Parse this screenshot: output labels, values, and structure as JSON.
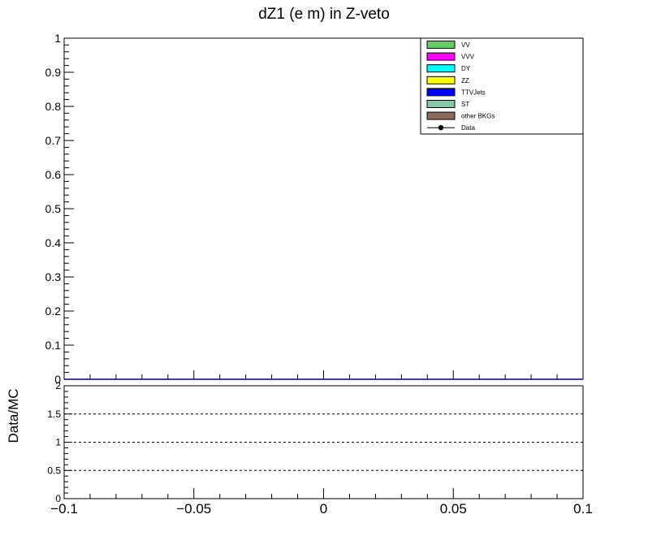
{
  "chart_data": [
    {
      "type": "bar",
      "title": "dZ1 (e m) in Z-veto",
      "xlabel": "",
      "ylabel": "",
      "xlim": [
        -0.1,
        0.1
      ],
      "ylim": [
        0,
        1
      ],
      "y_ticks": [
        "0",
        "0.1",
        "0.2",
        "0.3",
        "0.4",
        "0.5",
        "0.6",
        "0.7",
        "0.8",
        "0.9",
        "1"
      ],
      "legend_position": "top-right",
      "series": [
        {
          "name": "VV",
          "color": "#66cc66",
          "values": []
        },
        {
          "name": "VVV",
          "color": "#ff00ff",
          "values": []
        },
        {
          "name": "DY",
          "color": "#00ffff",
          "values": []
        },
        {
          "name": "ZZ",
          "color": "#ffff00",
          "values": []
        },
        {
          "name": "TTVJets",
          "color": "#0000ff",
          "values": []
        },
        {
          "name": "ST",
          "color": "#88c4a8",
          "values": []
        },
        {
          "name": "other BKGs",
          "color": "#8b6a5c",
          "values": []
        },
        {
          "name": "Data",
          "color": "#000000",
          "marker": "circle",
          "values": []
        }
      ],
      "grid": false
    },
    {
      "type": "line",
      "title": "",
      "ylabel": "Data/MC",
      "xlabel": "",
      "xlim": [
        -0.1,
        0.1
      ],
      "ylim": [
        0,
        2
      ],
      "x_ticks": [
        "−0.1",
        "−0.05",
        "0",
        "0.05",
        "0.1"
      ],
      "y_ticks": [
        "0",
        "0.5",
        "1",
        "1.5",
        "2"
      ],
      "reference_lines": [
        0.5,
        1,
        1.5
      ],
      "series": []
    }
  ],
  "colors": {
    "frame": "#000000",
    "baseline": "#000080"
  }
}
